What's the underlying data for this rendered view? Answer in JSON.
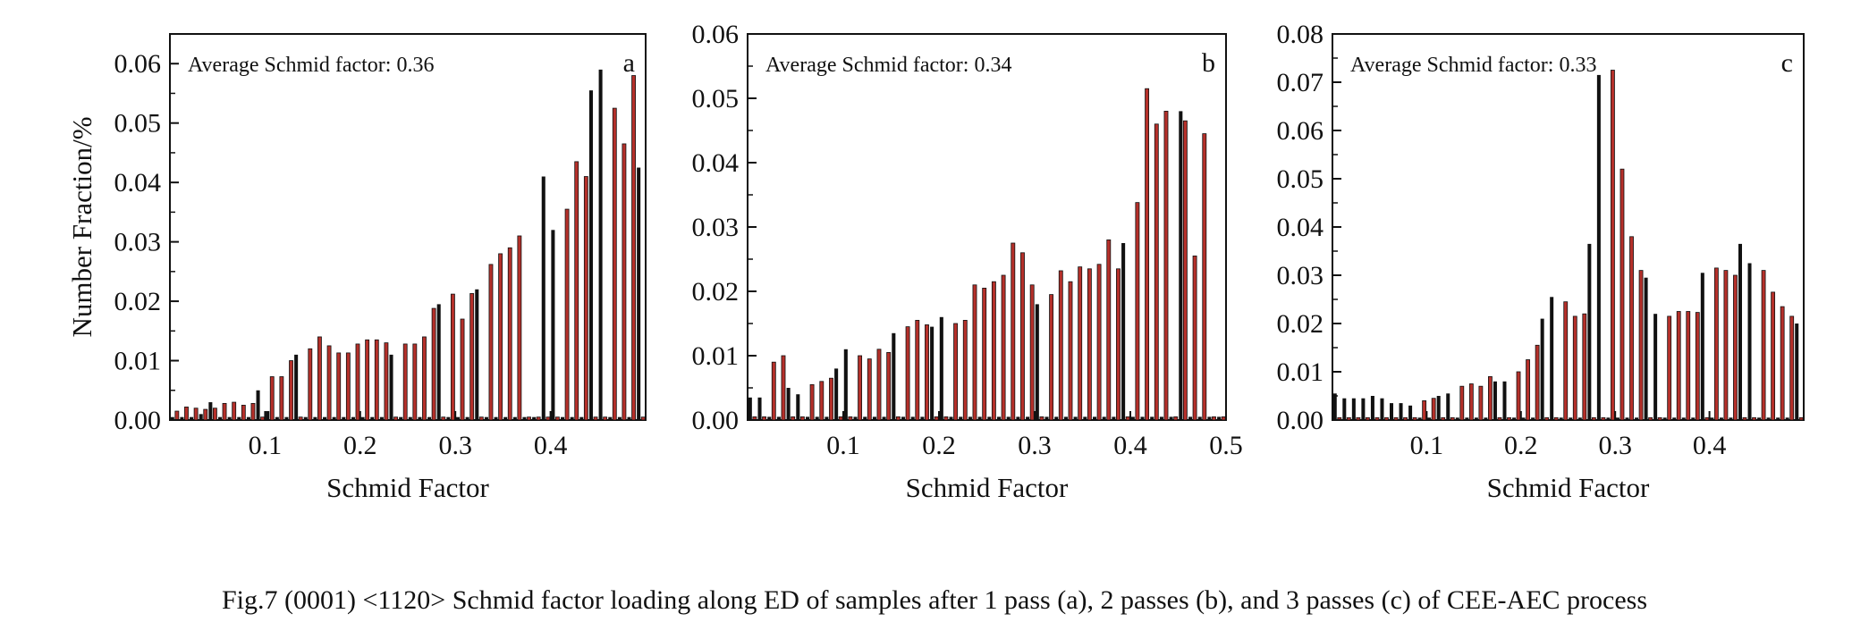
{
  "caption": "Fig.7    (0001) <1120> Schmid factor loading along ED of samples after 1 pass (a), 2 passes (b), and 3 passes (c) of CEE-AEC process",
  "colors": {
    "black_bar": "#111111",
    "red_bar": "#b5302a",
    "axis": "#111111"
  },
  "chart_data": [
    {
      "type": "bar",
      "panel_label": "a",
      "annotation": "Average Schmid factor: 0.36",
      "xlabel": "Schmid Factor",
      "ylabel": "Number Fraction/%",
      "xlim": [
        0.0,
        0.5
      ],
      "ylim": [
        0.0,
        0.065
      ],
      "xticks": [
        "0.1",
        "0.2",
        "0.3",
        "0.4"
      ],
      "xtick_values": [
        0.1,
        0.2,
        0.3,
        0.4
      ],
      "yticks": [
        "0.00",
        "0.01",
        "0.02",
        "0.03",
        "0.04",
        "0.05",
        "0.06"
      ],
      "ytick_values": [
        0.0,
        0.01,
        0.02,
        0.03,
        0.04,
        0.05,
        0.06
      ],
      "bar_x": [
        0.005,
        0.015,
        0.025,
        0.035,
        0.045,
        0.055,
        0.065,
        0.075,
        0.085,
        0.095,
        0.105,
        0.115,
        0.125,
        0.135,
        0.145,
        0.155,
        0.165,
        0.175,
        0.185,
        0.195,
        0.205,
        0.215,
        0.225,
        0.235,
        0.245,
        0.255,
        0.265,
        0.275,
        0.285,
        0.295,
        0.305,
        0.315,
        0.325,
        0.335,
        0.345,
        0.355,
        0.365,
        0.375,
        0.385,
        0.395,
        0.405,
        0.415,
        0.425,
        0.435,
        0.445,
        0.455,
        0.465,
        0.475,
        0.485,
        0.495
      ],
      "series": [
        {
          "color": "black",
          "values": [
            0.0005,
            0.0005,
            0.0005,
            0.001,
            0.003,
            0.0005,
            0.0005,
            0.0005,
            0.0005,
            0.005,
            0.0015,
            0.0005,
            0.0005,
            0.011,
            0.0005,
            0.0005,
            0.0005,
            0.0005,
            0.0005,
            0.0005,
            0.0005,
            0.0005,
            0.0005,
            0.011,
            0.0005,
            0.0005,
            0.0005,
            0.0005,
            0.0195,
            0.0005,
            0.0005,
            0.0005,
            0.022,
            0.0005,
            0.0005,
            0.0005,
            0.0005,
            0.0005,
            0.0005,
            0.041,
            0.032,
            0.0005,
            0.0005,
            0.0005,
            0.0555,
            0.059,
            0.0005,
            0.0005,
            0.0005,
            0.0425
          ]
        },
        {
          "color": "red",
          "values": [
            0.0015,
            0.0022,
            0.002,
            0.0018,
            0.002,
            0.0028,
            0.003,
            0.0025,
            0.0028,
            0.0005,
            0.0073,
            0.0073,
            0.01,
            0.0005,
            0.012,
            0.014,
            0.0125,
            0.0113,
            0.0113,
            0.0128,
            0.0135,
            0.0135,
            0.013,
            0.0005,
            0.0128,
            0.0128,
            0.014,
            0.0188,
            0.0005,
            0.0212,
            0.017,
            0.0213,
            0.0005,
            0.0262,
            0.028,
            0.029,
            0.031,
            0.0005,
            0.0005,
            0.0005,
            0.0005,
            0.0355,
            0.0435,
            0.041,
            0.0005,
            0.0005,
            0.0525,
            0.0465,
            0.058,
            0.0005
          ]
        }
      ]
    },
    {
      "type": "bar",
      "panel_label": "b",
      "annotation": "Average Schmid factor: 0.34",
      "xlabel": "Schmid Factor",
      "ylabel": "",
      "xlim": [
        0.0,
        0.5
      ],
      "ylim": [
        0.0,
        0.06
      ],
      "xticks": [
        "0.1",
        "0.2",
        "0.3",
        "0.4",
        "0.5"
      ],
      "xtick_values": [
        0.1,
        0.2,
        0.3,
        0.4,
        0.5
      ],
      "yticks": [
        "0.00",
        "0.01",
        "0.02",
        "0.03",
        "0.04",
        "0.05",
        "0.06"
      ],
      "ytick_values": [
        0.0,
        0.01,
        0.02,
        0.03,
        0.04,
        0.05,
        0.06
      ],
      "bar_x": [
        0.005,
        0.015,
        0.025,
        0.035,
        0.045,
        0.055,
        0.065,
        0.075,
        0.085,
        0.095,
        0.105,
        0.115,
        0.125,
        0.135,
        0.145,
        0.155,
        0.165,
        0.175,
        0.185,
        0.195,
        0.205,
        0.215,
        0.225,
        0.235,
        0.245,
        0.255,
        0.265,
        0.275,
        0.285,
        0.295,
        0.305,
        0.315,
        0.325,
        0.335,
        0.345,
        0.355,
        0.365,
        0.375,
        0.385,
        0.395,
        0.405,
        0.415,
        0.425,
        0.435,
        0.445,
        0.455,
        0.465,
        0.475,
        0.485,
        0.495
      ],
      "series": [
        {
          "color": "black",
          "values": [
            0.0035,
            0.0035,
            0.0005,
            0.0005,
            0.005,
            0.004,
            0.0005,
            0.0005,
            0.0005,
            0.008,
            0.011,
            0.0005,
            0.0005,
            0.0005,
            0.0005,
            0.0135,
            0.0005,
            0.0005,
            0.0005,
            0.0145,
            0.016,
            0.0005,
            0.0005,
            0.0005,
            0.0005,
            0.0005,
            0.0005,
            0.0005,
            0.0005,
            0.0005,
            0.018,
            0.0005,
            0.0005,
            0.0005,
            0.0005,
            0.0005,
            0.0005,
            0.0005,
            0.0005,
            0.0275,
            0.0005,
            0.0005,
            0.0005,
            0.0005,
            0.0005,
            0.048,
            0.0005,
            0.0005,
            0.0005,
            0.0005
          ]
        },
        {
          "color": "red",
          "values": [
            0.0005,
            0.0005,
            0.009,
            0.01,
            0.0005,
            0.0005,
            0.0055,
            0.006,
            0.0065,
            0.0005,
            0.0005,
            0.01,
            0.0095,
            0.011,
            0.0105,
            0.0005,
            0.0145,
            0.0155,
            0.0148,
            0.0005,
            0.0005,
            0.015,
            0.0155,
            0.021,
            0.0205,
            0.0215,
            0.0225,
            0.0275,
            0.026,
            0.021,
            0.0005,
            0.0195,
            0.0232,
            0.0215,
            0.0238,
            0.0235,
            0.0242,
            0.028,
            0.0235,
            0.0005,
            0.0338,
            0.0515,
            0.046,
            0.048,
            0.0005,
            0.0465,
            0.0255,
            0.0445,
            0.0005,
            0.0005
          ]
        }
      ]
    },
    {
      "type": "bar",
      "panel_label": "c",
      "annotation": "Average Schmid factor: 0.33",
      "xlabel": "Schmid Factor",
      "ylabel": "",
      "xlim": [
        0.0,
        0.5
      ],
      "ylim": [
        0.0,
        0.08
      ],
      "xticks": [
        "0.1",
        "0.2",
        "0.3",
        "0.4"
      ],
      "xtick_values": [
        0.1,
        0.2,
        0.3,
        0.4
      ],
      "yticks": [
        "0.00",
        "0.01",
        "0.02",
        "0.03",
        "0.04",
        "0.05",
        "0.06",
        "0.07",
        "0.08"
      ],
      "ytick_values": [
        0.0,
        0.01,
        0.02,
        0.03,
        0.04,
        0.05,
        0.06,
        0.07,
        0.08
      ],
      "bar_x": [
        0.005,
        0.015,
        0.025,
        0.035,
        0.045,
        0.055,
        0.065,
        0.075,
        0.085,
        0.095,
        0.105,
        0.115,
        0.125,
        0.135,
        0.145,
        0.155,
        0.165,
        0.175,
        0.185,
        0.195,
        0.205,
        0.215,
        0.225,
        0.235,
        0.245,
        0.255,
        0.265,
        0.275,
        0.285,
        0.295,
        0.305,
        0.315,
        0.325,
        0.335,
        0.345,
        0.355,
        0.365,
        0.375,
        0.385,
        0.395,
        0.405,
        0.415,
        0.425,
        0.435,
        0.445,
        0.455,
        0.465,
        0.475,
        0.485,
        0.495
      ],
      "series": [
        {
          "color": "black",
          "values": [
            0.0055,
            0.0045,
            0.0045,
            0.0045,
            0.005,
            0.0045,
            0.0035,
            0.0035,
            0.003,
            0.0005,
            0.0005,
            0.005,
            0.0055,
            0.0005,
            0.0005,
            0.0005,
            0.0005,
            0.008,
            0.008,
            0.0005,
            0.0005,
            0.0005,
            0.021,
            0.0255,
            0.0005,
            0.0005,
            0.0005,
            0.0365,
            0.0715,
            0.0005,
            0.0005,
            0.0005,
            0.0005,
            0.0295,
            0.022,
            0.0005,
            0.0005,
            0.0005,
            0.0005,
            0.0305,
            0.0005,
            0.0005,
            0.0005,
            0.0365,
            0.0325,
            0.0005,
            0.0005,
            0.0005,
            0.0005,
            0.02
          ]
        },
        {
          "color": "red",
          "values": [
            0.0005,
            0.0005,
            0.0005,
            0.0005,
            0.0005,
            0.0005,
            0.0005,
            0.0005,
            0.0005,
            0.004,
            0.0045,
            0.0005,
            0.0005,
            0.007,
            0.0075,
            0.007,
            0.009,
            0.0005,
            0.0005,
            0.01,
            0.0125,
            0.0155,
            0.0005,
            0.0005,
            0.0245,
            0.0215,
            0.022,
            0.0005,
            0.0005,
            0.0725,
            0.052,
            0.038,
            0.031,
            0.0005,
            0.0005,
            0.0215,
            0.0225,
            0.0225,
            0.0223,
            0.0005,
            0.0315,
            0.031,
            0.03,
            0.0005,
            0.0005,
            0.031,
            0.0265,
            0.0235,
            0.0215,
            0.0005
          ]
        }
      ]
    }
  ]
}
